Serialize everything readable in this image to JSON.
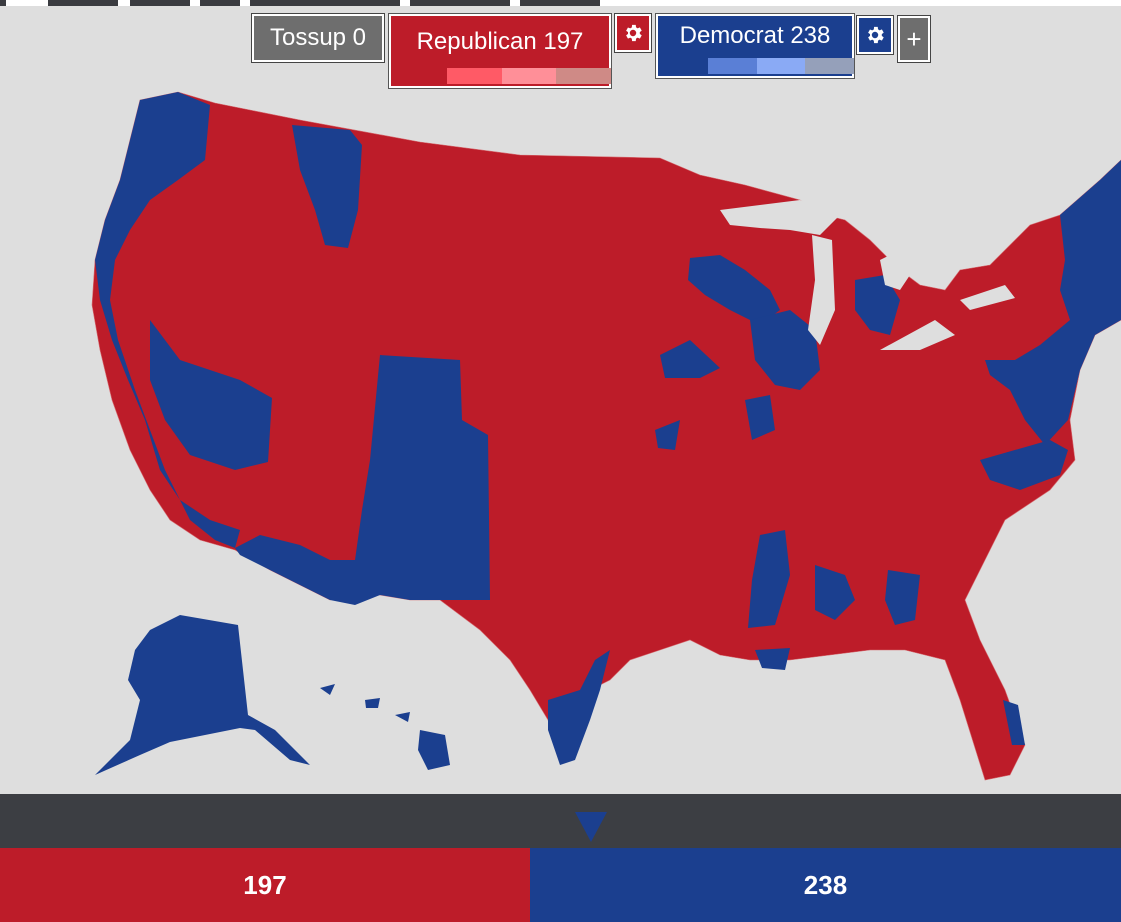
{
  "toolbar": {
    "tossup_label": "Tossup 0",
    "republican_label": "Republican 197",
    "democrat_label": "Democrat 238",
    "add_label": "+"
  },
  "parties": {
    "republican": {
      "color": "#bd1c29",
      "shade_colors": [
        "#ff5a66",
        "#ff8f98",
        "#cf8a86"
      ]
    },
    "democrat": {
      "color": "#1b3f8f",
      "shade_colors": [
        "#5a7fd6",
        "#8aaaf5",
        "#95a0ba"
      ]
    },
    "tossup": {
      "color": "#6e6e6e"
    }
  },
  "icons": {
    "settings": "gear-icon",
    "indicator": "triangle-pointer-icon"
  },
  "tally": {
    "republican_total": "197",
    "democrat_total": "238"
  },
  "map": {
    "background": "#dedede"
  }
}
